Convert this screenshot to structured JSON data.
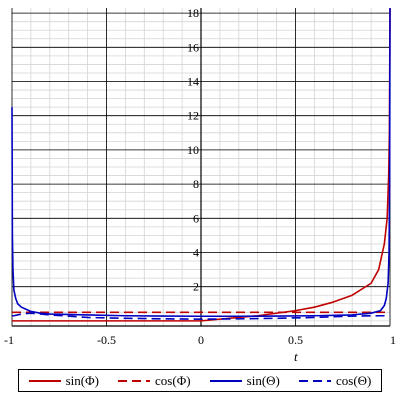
{
  "chart_data": {
    "type": "line",
    "xlabel": "t",
    "ylabel": "",
    "xlim": [
      -1,
      1
    ],
    "ylim": [
      -0.3,
      18.3
    ],
    "x_ticks": [
      "-1",
      "-0.5",
      "0",
      "0.5",
      "1"
    ],
    "x_tick_values": [
      -1,
      -0.5,
      0,
      0.5,
      1
    ],
    "y_ticks": [
      "2",
      "4",
      "6",
      "8",
      "10",
      "12",
      "14",
      "16",
      "18"
    ],
    "y_tick_values": [
      2,
      4,
      6,
      8,
      10,
      12,
      14,
      16,
      18
    ],
    "grid": true,
    "legend_position": "bottom",
    "series": [
      {
        "name": "sin(Φ)",
        "color": "#c00000",
        "dash": "solid",
        "x": [
          -1,
          -0.5,
          0,
          0.3,
          0.5,
          0.6,
          0.7,
          0.8,
          0.9,
          0.94,
          0.97,
          0.985,
          0.993,
          0.997,
          1.0
        ],
        "y": [
          0,
          0,
          0,
          0.3,
          0.6,
          0.8,
          1.1,
          1.5,
          2.2,
          3.0,
          4.5,
          6.0,
          8.5,
          11.0,
          18.3
        ]
      },
      {
        "name": "cos(Φ)",
        "color": "#c00000",
        "dash": "dashed",
        "x": [
          -1,
          1
        ],
        "y": [
          0.5,
          0.5
        ]
      },
      {
        "name": "sin(Θ)",
        "color": "#0000c0",
        "dash": "solid",
        "x": [
          -1.0,
          -0.998,
          -0.995,
          -0.99,
          -0.98,
          -0.97,
          -0.95,
          -0.9,
          -0.85,
          -0.8,
          -0.6,
          -0.4,
          -0.2,
          0,
          0.2,
          0.4,
          0.6,
          0.8,
          0.9,
          0.95,
          0.97,
          0.98,
          0.99,
          0.995,
          0.998,
          1.0
        ],
        "y": [
          12.5,
          5.0,
          3.0,
          1.8,
          1.3,
          1.0,
          0.8,
          0.55,
          0.45,
          0.4,
          0.35,
          0.3,
          0.28,
          0.27,
          0.27,
          0.28,
          0.3,
          0.35,
          0.45,
          0.6,
          0.9,
          1.3,
          2.2,
          4.0,
          8.0,
          18.3
        ]
      },
      {
        "name": "cos(Θ)",
        "color": "#0000c0",
        "dash": "dashed",
        "x": [
          -1.0,
          -0.99,
          -0.95,
          -0.9,
          -0.8,
          -0.6,
          -0.4,
          -0.2,
          0,
          0.2,
          0.4,
          0.6,
          0.8,
          0.95,
          1.0
        ],
        "y": [
          0.3,
          0.3,
          0.4,
          0.45,
          0.35,
          0.2,
          0.15,
          0.12,
          0.1,
          0.12,
          0.15,
          0.2,
          0.28,
          0.3,
          0.3
        ]
      }
    ]
  },
  "legend": {
    "items": [
      "sin(Φ)",
      "cos(Φ)",
      "sin(Θ)",
      "cos(Θ)"
    ]
  }
}
